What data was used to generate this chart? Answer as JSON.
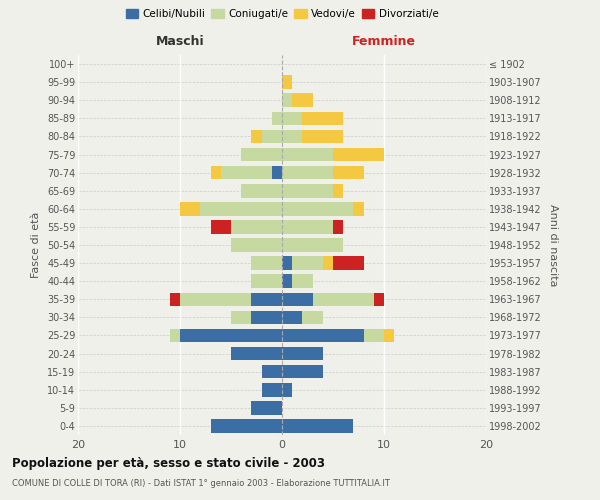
{
  "age_groups": [
    "0-4",
    "5-9",
    "10-14",
    "15-19",
    "20-24",
    "25-29",
    "30-34",
    "35-39",
    "40-44",
    "45-49",
    "50-54",
    "55-59",
    "60-64",
    "65-69",
    "70-74",
    "75-79",
    "80-84",
    "85-89",
    "90-94",
    "95-99",
    "100+"
  ],
  "birth_years": [
    "1998-2002",
    "1993-1997",
    "1988-1992",
    "1983-1987",
    "1978-1982",
    "1973-1977",
    "1968-1972",
    "1963-1967",
    "1958-1962",
    "1953-1957",
    "1948-1952",
    "1943-1947",
    "1938-1942",
    "1933-1937",
    "1928-1932",
    "1923-1927",
    "1918-1922",
    "1913-1917",
    "1908-1912",
    "1903-1907",
    "≤ 1902"
  ],
  "male": {
    "celibi": [
      7,
      3,
      2,
      2,
      5,
      10,
      3,
      3,
      0,
      0,
      0,
      0,
      0,
      0,
      1,
      0,
      0,
      0,
      0,
      0,
      0
    ],
    "coniugati": [
      0,
      0,
      0,
      0,
      0,
      1,
      2,
      7,
      3,
      3,
      5,
      5,
      8,
      4,
      5,
      4,
      2,
      1,
      0,
      0,
      0
    ],
    "vedovi": [
      0,
      0,
      0,
      0,
      0,
      0,
      0,
      0,
      0,
      0,
      0,
      0,
      2,
      0,
      1,
      0,
      1,
      0,
      0,
      0,
      0
    ],
    "divorziati": [
      0,
      0,
      0,
      0,
      0,
      0,
      0,
      1,
      0,
      0,
      0,
      2,
      0,
      0,
      0,
      0,
      0,
      0,
      0,
      0,
      0
    ]
  },
  "female": {
    "nubili": [
      7,
      0,
      1,
      4,
      4,
      8,
      2,
      3,
      1,
      1,
      0,
      0,
      0,
      0,
      0,
      0,
      0,
      0,
      0,
      0,
      0
    ],
    "coniugate": [
      0,
      0,
      0,
      0,
      0,
      2,
      2,
      6,
      2,
      3,
      6,
      5,
      7,
      5,
      5,
      5,
      2,
      2,
      1,
      0,
      0
    ],
    "vedove": [
      0,
      0,
      0,
      0,
      0,
      1,
      0,
      0,
      0,
      1,
      0,
      0,
      1,
      1,
      3,
      5,
      4,
      4,
      2,
      1,
      0
    ],
    "divorziate": [
      0,
      0,
      0,
      0,
      0,
      0,
      0,
      1,
      0,
      3,
      0,
      1,
      0,
      0,
      0,
      0,
      0,
      0,
      0,
      0,
      0
    ]
  },
  "colors": {
    "celibi_nubili": "#3b6ea5",
    "coniugati": "#c5d9a0",
    "vedovi": "#f5c842",
    "divorziati": "#cc2222"
  },
  "xlim": 20,
  "title": "Popolazione per età, sesso e stato civile - 2003",
  "subtitle": "COMUNE DI COLLE DI TORA (RI) - Dati ISTAT 1° gennaio 2003 - Elaborazione TUTTITALIA.IT",
  "ylabel_left": "Fasce di età",
  "ylabel_right": "Anni di nascita",
  "xlabel_left": "Maschi",
  "xlabel_right": "Femmine",
  "bg_color": "#f0f0eb",
  "bar_height": 0.75
}
